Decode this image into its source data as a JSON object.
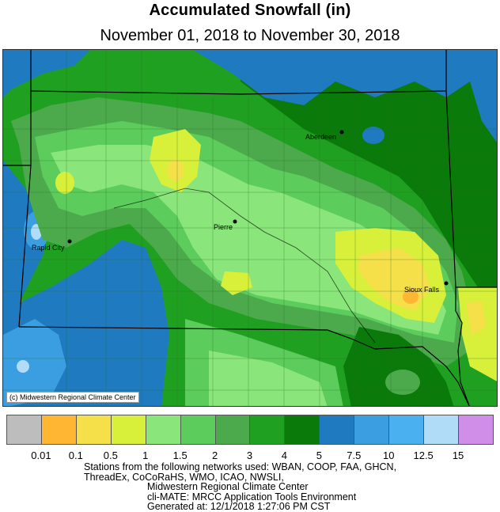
{
  "title": "Accumulated Snowfall (in)",
  "subtitle": "November 01, 2018 to November 30, 2018",
  "map": {
    "cities": [
      {
        "name": "Aberdeen"
      },
      {
        "name": "Pierre"
      },
      {
        "name": "Rapid City"
      },
      {
        "name": "Sioux Falls"
      }
    ],
    "copyright": "(c) Midwestern Regional Climate Center"
  },
  "legend": {
    "colors": [
      "#bdbdbd",
      "#ffb733",
      "#f5e04a",
      "#d8f03a",
      "#8ae67a",
      "#5ccc5c",
      "#4caa4c",
      "#20a020",
      "#0a7a0a",
      "#1f7ac0",
      "#3a9ee0",
      "#4ab0f0",
      "#b0dcf8",
      "#d08ee8"
    ],
    "labels": [
      "0.01",
      "0.1",
      "0.5",
      "1",
      "1.5",
      "2",
      "3",
      "4",
      "5",
      "7.5",
      "10",
      "12.5",
      "15"
    ]
  },
  "footer": {
    "lines": [
      "Stations from the following networks used: WBAN, COOP, FAA, GHCN,",
      "ThreadEx, CoCoRaHS, WMO, ICAO, NWSLI,",
      "Midwestern Regional Climate Center",
      "cli-MATE: MRCC Application Tools Environment",
      "Generated at: 12/1/2018 1:27:06 PM CST"
    ]
  }
}
